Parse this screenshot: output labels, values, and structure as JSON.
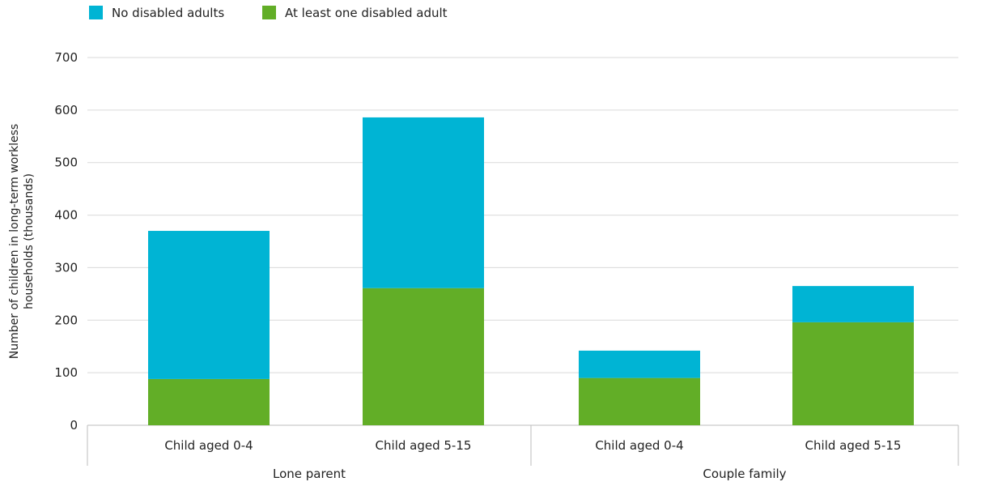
{
  "chart_data": {
    "type": "bar",
    "stacked": true,
    "title": "",
    "xlabel": "",
    "ylabel": "Number of children in long-term workless households (thousands)",
    "ylabel_lines": [
      "Number of children in long-term workless",
      "households (thousands)"
    ],
    "ylim": [
      0,
      700
    ],
    "yticks": [
      0,
      100,
      200,
      300,
      400,
      500,
      600,
      700
    ],
    "grid": true,
    "legend_position": "top-left",
    "groups": [
      {
        "label": "Lone parent",
        "categories": [
          "Child aged 0-4",
          "Child aged 5-15"
        ]
      },
      {
        "label": "Couple family",
        "categories": [
          "Child aged 0-4",
          "Child aged 5-15"
        ]
      }
    ],
    "categories": [
      "Child aged 0-4",
      "Child aged 5-15",
      "Child aged 0-4",
      "Child aged 5-15"
    ],
    "series": [
      {
        "name": "At least one disabled adult",
        "color": "#62ae27",
        "values": [
          88,
          261,
          90,
          196
        ]
      },
      {
        "name": "No disabled adults",
        "color": "#00b4d4",
        "values": [
          282,
          325,
          52,
          69
        ]
      }
    ],
    "legend": [
      {
        "name": "No disabled adults",
        "color": "#00b4d4"
      },
      {
        "name": "At least one disabled adult",
        "color": "#62ae27"
      }
    ]
  }
}
